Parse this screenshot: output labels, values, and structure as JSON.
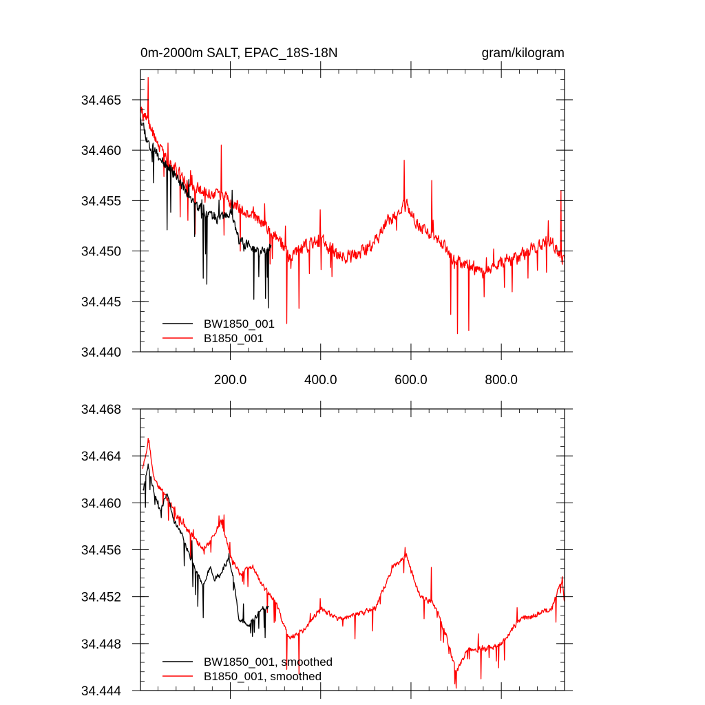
{
  "chart_data": [
    {
      "type": "line",
      "title_left": "0m-2000m SALT, EPAC_18S-18N",
      "title_right": "gram/kilogram",
      "xlabel": "",
      "ylabel": "",
      "xlim": [
        1,
        940
      ],
      "ylim": [
        34.44,
        34.468
      ],
      "x_ticks": [
        200,
        400,
        600,
        800
      ],
      "x_tick_labels": [
        "200.0",
        "400.0",
        "600.0",
        "800.0"
      ],
      "y_ticks": [
        34.44,
        34.445,
        34.45,
        34.455,
        34.46,
        34.465
      ],
      "y_tick_labels": [
        "34.440",
        "34.445",
        "34.450",
        "34.455",
        "34.460",
        "34.465"
      ],
      "legend": {
        "placement": "bottom-left",
        "entries": [
          "BW1850_001",
          "B1850_001"
        ]
      },
      "series": [
        {
          "name": "BW1850_001",
          "color": "#000000",
          "x_start": 1,
          "x_end": 290,
          "anchors": [
            [
              1,
              34.4635
            ],
            [
              20,
              34.4605
            ],
            [
              40,
              34.4595
            ],
            [
              60,
              34.4585
            ],
            [
              80,
              34.4575
            ],
            [
              100,
              34.456
            ],
            [
              120,
              34.4545
            ],
            [
              140,
              34.454
            ],
            [
              160,
              34.4535
            ],
            [
              180,
              34.453
            ],
            [
              200,
              34.4535
            ],
            [
              220,
              34.451
            ],
            [
              240,
              34.4505
            ],
            [
              260,
              34.45
            ],
            [
              280,
              34.45
            ],
            [
              290,
              34.451
            ]
          ],
          "noise": 0.0018,
          "spike_depth": 0.006,
          "seed": 11,
          "dips": [
            [
              148,
              34.4467
            ],
            [
              252,
              34.4452
            ],
            [
              278,
              34.4453
            ],
            [
              140,
              34.4473
            ]
          ]
        },
        {
          "name": "B1850_001",
          "color": "#ff0000",
          "x_start": 1,
          "x_end": 940,
          "anchors": [
            [
              1,
              34.464
            ],
            [
              20,
              34.4625
            ],
            [
              50,
              34.4595
            ],
            [
              80,
              34.458
            ],
            [
              110,
              34.4565
            ],
            [
              150,
              34.4555
            ],
            [
              180,
              34.4558
            ],
            [
              210,
              34.4545
            ],
            [
              250,
              34.4535
            ],
            [
              300,
              34.4515
            ],
            [
              330,
              34.4495
            ],
            [
              360,
              34.4505
            ],
            [
              400,
              34.451
            ],
            [
              440,
              34.4495
            ],
            [
              480,
              34.4495
            ],
            [
              520,
              34.451
            ],
            [
              560,
              34.4535
            ],
            [
              590,
              34.4545
            ],
            [
              620,
              34.4525
            ],
            [
              660,
              34.451
            ],
            [
              700,
              34.449
            ],
            [
              730,
              34.4485
            ],
            [
              760,
              34.4475
            ],
            [
              800,
              34.449
            ],
            [
              840,
              34.4495
            ],
            [
              880,
              34.4505
            ],
            [
              910,
              34.451
            ],
            [
              940,
              34.449
            ]
          ],
          "noise": 0.002,
          "spike_depth": 0.0045,
          "seed": 29,
          "dips": [
            [
              325,
              34.4428
            ],
            [
              352,
              34.4443
            ],
            [
              703,
              34.4418
            ],
            [
              728,
              34.4421
            ],
            [
              688,
              34.4437
            ]
          ],
          "peaks": [
            [
              18,
              34.4672
            ],
            [
              180,
              34.4605
            ],
            [
              585,
              34.459
            ],
            [
              646,
              34.457
            ],
            [
              932,
              34.456
            ]
          ]
        }
      ]
    },
    {
      "type": "line",
      "title_left": "",
      "title_right": "",
      "xlabel": "",
      "ylabel": "",
      "xlim": [
        1,
        940
      ],
      "ylim": [
        34.444,
        34.468
      ],
      "x_ticks": [
        200,
        400,
        600,
        800
      ],
      "x_tick_labels": [],
      "y_ticks": [
        34.444,
        34.448,
        34.452,
        34.456,
        34.46,
        34.464,
        34.468
      ],
      "y_tick_labels": [
        "34.444",
        "34.448",
        "34.452",
        "34.456",
        "34.460",
        "34.464",
        "34.468"
      ],
      "legend": {
        "placement": "bottom-left",
        "entries": [
          "BW1850_001, smoothed",
          "B1850_001, smoothed"
        ]
      },
      "series": [
        {
          "name": "BW1850_001, smoothed",
          "color": "#000000",
          "x_start": 6,
          "x_end": 285,
          "anchors": [
            [
              6,
              34.4612
            ],
            [
              10,
              34.4615
            ],
            [
              18,
              34.4632
            ],
            [
              30,
              34.461
            ],
            [
              45,
              34.4592
            ],
            [
              60,
              34.461
            ],
            [
              75,
              34.4585
            ],
            [
              90,
              34.4575
            ],
            [
              105,
              34.456
            ],
            [
              120,
              34.4545
            ],
            [
              140,
              34.453
            ],
            [
              155,
              34.4545
            ],
            [
              165,
              34.4535
            ],
            [
              180,
              34.454
            ],
            [
              195,
              34.4552
            ],
            [
              205,
              34.454
            ],
            [
              220,
              34.45
            ],
            [
              240,
              34.4495
            ],
            [
              260,
              34.4505
            ],
            [
              270,
              34.451
            ],
            [
              285,
              34.451
            ]
          ],
          "noise": 0.0007,
          "spike_depth": 0.0028,
          "seed": 41,
          "dips": [
            [
              140,
              34.4502
            ],
            [
              245,
              34.4489
            ],
            [
              263,
              34.4493
            ]
          ]
        },
        {
          "name": "B1850_001, smoothed",
          "color": "#ff0000",
          "x_start": 6,
          "x_end": 940,
          "anchors": [
            [
              6,
              34.463
            ],
            [
              20,
              34.4655
            ],
            [
              30,
              34.462
            ],
            [
              50,
              34.461
            ],
            [
              80,
              34.459
            ],
            [
              110,
              34.4575
            ],
            [
              140,
              34.456
            ],
            [
              160,
              34.457
            ],
            [
              180,
              34.4585
            ],
            [
              200,
              34.4555
            ],
            [
              220,
              34.454
            ],
            [
              250,
              34.4545
            ],
            [
              270,
              34.453
            ],
            [
              300,
              34.4515
            ],
            [
              330,
              34.4485
            ],
            [
              360,
              34.449
            ],
            [
              400,
              34.451
            ],
            [
              440,
              34.45
            ],
            [
              480,
              34.4505
            ],
            [
              520,
              34.451
            ],
            [
              560,
              34.4545
            ],
            [
              590,
              34.4555
            ],
            [
              620,
              34.452
            ],
            [
              650,
              34.4515
            ],
            [
              680,
              34.4485
            ],
            [
              700,
              34.4455
            ],
            [
              725,
              34.4475
            ],
            [
              760,
              34.4475
            ],
            [
              800,
              34.448
            ],
            [
              840,
              34.45
            ],
            [
              880,
              34.4505
            ],
            [
              910,
              34.451
            ],
            [
              935,
              34.4535
            ],
            [
              940,
              34.4515
            ]
          ],
          "noise": 0.0007,
          "spike_depth": 0.0022,
          "seed": 53,
          "dips": [
            [
              325,
              34.4458
            ],
            [
              352,
              34.4454
            ],
            [
              700,
              34.4442
            ],
            [
              755,
              34.445
            ]
          ],
          "peaks": [
            [
              18,
              34.4655
            ],
            [
              182,
              34.4586
            ],
            [
              587,
              34.4562
            ],
            [
              645,
              34.4545
            ],
            [
              935,
              34.4537
            ]
          ]
        }
      ]
    }
  ]
}
